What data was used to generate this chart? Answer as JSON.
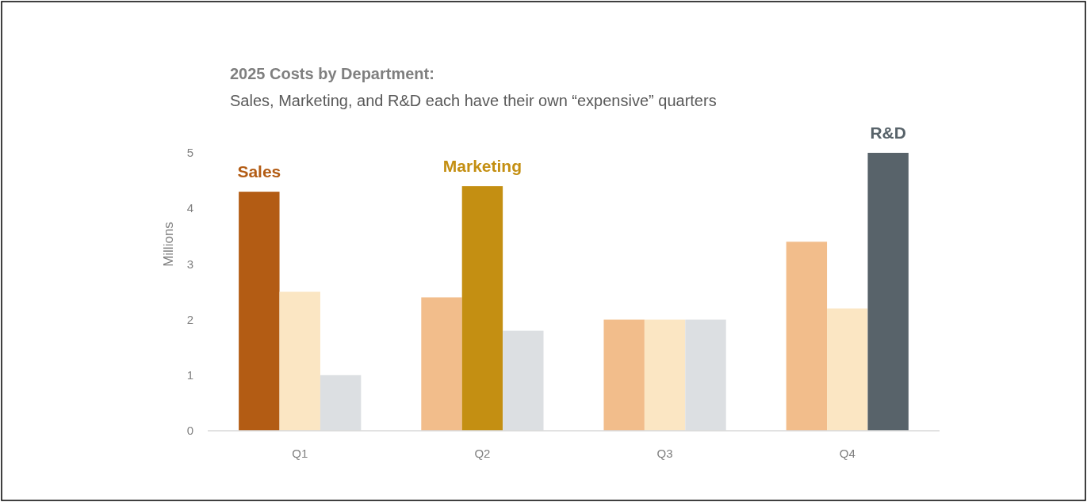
{
  "chart_data": {
    "type": "bar",
    "title": "2025 Costs by Department:",
    "subtitle": "Sales, Marketing, and R&D each have their own “expensive” quarters",
    "ylabel": "Millions",
    "categories": [
      "Q1",
      "Q2",
      "Q3",
      "Q4"
    ],
    "series": [
      {
        "name": "Sales",
        "colors": [
          "#b35c14",
          "#f2bd8b",
          "#f2bd8b",
          "#f2bd8b"
        ],
        "values": [
          4.3,
          2.4,
          2.0,
          3.4
        ]
      },
      {
        "name": "Marketing",
        "colors": [
          "#fbe6c3",
          "#c48f12",
          "#fbe6c3",
          "#fbe6c3"
        ],
        "values": [
          2.5,
          4.4,
          2.0,
          2.2
        ]
      },
      {
        "name": "R&D",
        "colors": [
          "#dcdfe2",
          "#dcdfe2",
          "#dcdfe2",
          "#58636a"
        ],
        "values": [
          1.0,
          1.8,
          2.0,
          5.0
        ]
      }
    ],
    "ylim": [
      0,
      5
    ],
    "yticks": [
      0,
      1,
      2,
      3,
      4,
      5
    ],
    "grid": false,
    "legend": false
  }
}
